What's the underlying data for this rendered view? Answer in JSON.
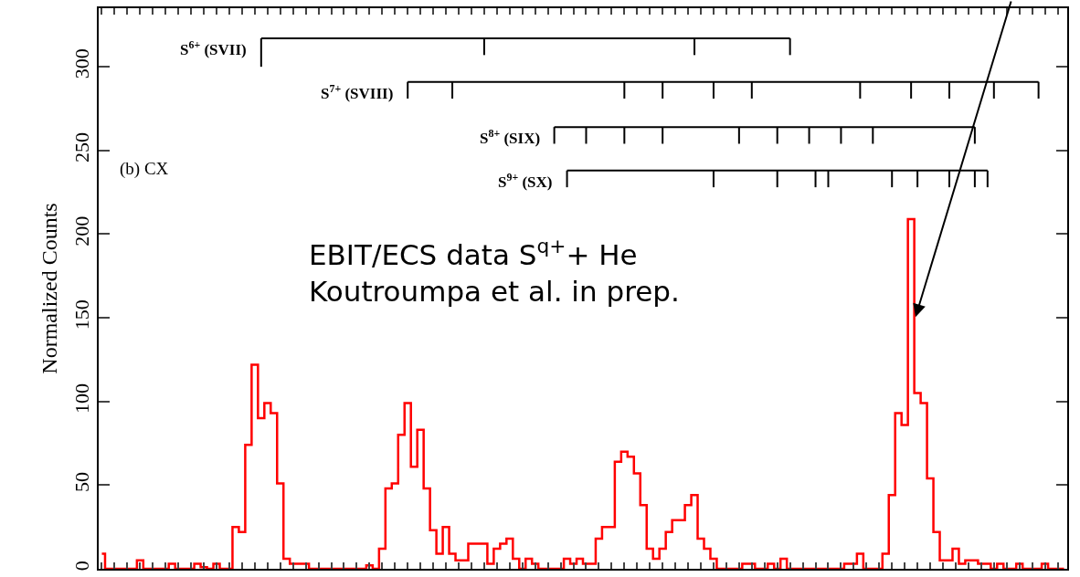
{
  "chart_data": {
    "type": "step",
    "ylabel": "Normalized Counts",
    "categories": [
      null,
      null,
      null,
      null,
      null,
      null,
      null,
      null,
      null,
      null,
      null,
      null,
      null,
      null,
      null,
      null,
      null,
      null,
      null,
      null,
      null,
      null,
      null,
      null,
      null,
      null,
      null,
      null,
      null,
      null,
      null,
      null,
      null,
      null,
      null,
      null,
      null,
      null,
      null,
      null,
      null,
      null,
      null,
      null,
      null,
      null,
      null,
      null,
      null,
      null,
      null,
      null,
      null,
      null,
      null,
      null,
      null,
      null,
      null,
      null,
      null,
      null,
      null,
      null,
      null,
      null,
      null,
      null,
      null,
      null,
      null,
      null,
      null,
      null,
      null,
      null,
      null,
      null,
      null,
      null,
      null,
      null,
      null,
      null,
      null,
      null,
      null,
      null,
      null,
      null,
      null,
      null,
      null,
      null,
      null,
      null,
      null,
      null,
      null,
      null,
      null,
      null,
      null,
      null,
      null,
      null,
      null,
      null,
      null,
      null,
      null,
      null,
      null,
      null,
      null,
      null,
      null,
      null,
      null,
      null,
      null,
      null,
      null,
      null,
      null,
      null,
      null,
      null,
      null,
      null,
      null,
      null,
      null,
      null,
      null,
      null,
      null,
      null,
      null,
      null,
      null,
      null,
      null,
      null,
      null,
      null,
      null,
      null,
      null,
      null,
      null,
      null
    ],
    "series": [
      {
        "type": "step",
        "color": "#ff0000",
        "values": [
          9,
          0,
          0,
          0,
          0,
          0,
          5,
          0,
          0,
          0,
          0,
          3,
          0,
          0,
          0,
          3,
          1,
          0,
          3,
          0,
          0,
          25,
          22,
          74,
          122,
          90,
          99,
          93,
          51,
          6,
          3,
          3,
          3,
          0,
          0,
          0,
          0,
          0,
          0,
          0,
          0,
          0,
          2,
          0,
          12,
          48,
          51,
          80,
          99,
          61,
          83,
          48,
          23,
          9,
          25,
          9,
          5,
          5,
          15,
          15,
          15,
          3,
          12,
          15,
          18,
          6,
          0,
          6,
          3,
          0,
          0,
          0,
          0,
          6,
          3,
          6,
          3,
          3,
          18,
          25,
          25,
          64,
          70,
          67,
          57,
          38,
          12,
          6,
          12,
          22,
          29,
          29,
          38,
          44,
          18,
          12,
          6,
          0,
          0,
          0,
          0,
          3,
          3,
          0,
          0,
          3,
          0,
          6,
          0,
          0,
          0,
          0,
          0,
          0,
          0,
          0,
          0,
          3,
          3,
          9,
          0,
          0,
          0,
          9,
          44,
          93,
          86,
          209,
          105,
          99,
          54,
          22,
          5,
          5,
          12,
          3,
          5,
          5,
          3,
          3,
          0,
          3,
          0,
          0,
          3,
          0,
          0,
          0,
          3,
          0,
          0,
          0
        ]
      },
      {
        "type": "line",
        "name": "S$^{6+}$ (SVII)",
        "color": "#000000",
        "values": [
          null,
          null,
          null,
          null,
          null,
          null,
          null,
          null,
          null,
          null,
          null,
          null,
          null,
          null,
          null,
          null,
          null,
          null,
          null,
          null,
          null,
          null,
          null,
          null,
          null,
          317,
          null,
          null,
          null,
          null,
          null,
          null,
          null,
          null,
          null,
          null,
          null,
          null,
          null,
          null,
          null,
          null,
          null,
          null,
          null,
          null,
          null,
          null,
          null,
          null,
          null,
          null,
          null,
          null,
          null,
          null,
          null,
          null,
          null,
          null,
          317,
          null,
          null,
          null,
          null,
          null,
          null,
          null,
          null,
          null,
          null,
          null,
          null,
          null,
          null,
          null,
          null,
          null,
          null,
          null,
          null,
          null,
          null,
          null,
          null,
          null,
          null,
          null,
          null,
          null,
          null,
          null,
          null,
          317,
          null,
          null,
          null,
          null,
          null,
          null,
          null,
          null,
          null,
          null,
          null,
          null,
          null,
          null,
          317,
          null,
          null,
          null,
          null,
          null,
          null,
          null,
          null,
          null,
          null,
          null,
          null,
          null,
          null,
          null,
          null,
          null,
          null,
          null,
          null,
          null,
          null,
          null,
          null,
          null,
          null,
          null,
          null,
          null,
          null,
          null,
          null,
          null,
          null,
          null,
          null,
          null,
          null,
          null,
          null,
          null,
          null,
          null
        ],
        "errors": [
          null,
          null,
          null,
          null,
          null,
          null,
          null,
          null,
          null,
          null,
          null,
          null,
          null,
          null,
          null,
          null,
          null,
          null,
          null,
          null,
          null,
          null,
          null,
          null,
          null,
          [
            300,
            317
          ],
          null,
          null,
          null,
          null,
          null,
          null,
          null,
          null,
          null,
          null,
          null,
          null,
          null,
          null,
          null,
          null,
          null,
          null,
          null,
          null,
          null,
          null,
          null,
          null,
          null,
          null,
          null,
          null,
          null,
          null,
          null,
          null,
          null,
          null,
          [
            307,
            317
          ],
          null,
          null,
          null,
          null,
          null,
          null,
          null,
          null,
          null,
          null,
          null,
          null,
          null,
          null,
          null,
          null,
          null,
          null,
          null,
          null,
          null,
          null,
          null,
          null,
          null,
          null,
          null,
          null,
          null,
          null,
          null,
          null,
          [
            307,
            317
          ],
          null,
          null,
          null,
          null,
          null,
          null,
          null,
          null,
          null,
          null,
          null,
          null,
          null,
          null,
          [
            307,
            317
          ],
          null,
          null,
          null,
          null,
          null,
          null,
          null,
          null,
          null,
          null,
          null,
          null,
          null,
          null,
          null,
          null,
          null,
          null,
          null,
          null,
          null,
          null,
          null,
          null,
          null,
          null,
          null,
          null,
          null,
          null,
          null,
          null,
          null,
          null,
          null,
          null,
          null,
          null,
          null,
          null,
          null,
          null,
          null
        ]
      },
      {
        "type": "line",
        "name": "S$^{7+}$ (SVIII)",
        "color": "#000000",
        "values": [
          null,
          null,
          null,
          null,
          null,
          null,
          null,
          null,
          null,
          null,
          null,
          null,
          null,
          null,
          null,
          null,
          null,
          null,
          null,
          null,
          null,
          null,
          null,
          null,
          null,
          null,
          null,
          null,
          null,
          null,
          null,
          null,
          null,
          null,
          null,
          null,
          null,
          null,
          null,
          null,
          null,
          null,
          null,
          null,
          null,
          null,
          null,
          null,
          291,
          null,
          null,
          null,
          null,
          null,
          null,
          291,
          null,
          null,
          null,
          null,
          null,
          null,
          null,
          null,
          null,
          null,
          null,
          null,
          null,
          null,
          null,
          null,
          null,
          null,
          null,
          null,
          null,
          null,
          null,
          null,
          null,
          null,
          291,
          null,
          null,
          null,
          null,
          null,
          291,
          null,
          null,
          null,
          null,
          null,
          null,
          null,
          291,
          null,
          null,
          null,
          null,
          null,
          291,
          null,
          null,
          null,
          null,
          null,
          null,
          null,
          null,
          null,
          null,
          null,
          null,
          null,
          null,
          null,
          null,
          291,
          null,
          null,
          null,
          null,
          null,
          null,
          null,
          291,
          null,
          null,
          null,
          null,
          null,
          291,
          null,
          null,
          null,
          null,
          null,
          null,
          291,
          null,
          null,
          null,
          null,
          null,
          null,
          291,
          null,
          null,
          null,
          null
        ],
        "errors": [
          null,
          null,
          null,
          null,
          null,
          null,
          null,
          null,
          null,
          null,
          null,
          null,
          null,
          null,
          null,
          null,
          null,
          null,
          null,
          null,
          null,
          null,
          null,
          null,
          null,
          null,
          null,
          null,
          null,
          null,
          null,
          null,
          null,
          null,
          null,
          null,
          null,
          null,
          null,
          null,
          null,
          null,
          null,
          null,
          null,
          null,
          null,
          null,
          [
            281,
            291
          ],
          null,
          null,
          null,
          null,
          null,
          null,
          [
            281,
            291
          ],
          null,
          null,
          null,
          null,
          null,
          null,
          null,
          null,
          null,
          null,
          null,
          null,
          null,
          null,
          null,
          null,
          null,
          null,
          null,
          null,
          null,
          null,
          null,
          null,
          null,
          null,
          [
            281,
            291
          ],
          null,
          null,
          null,
          null,
          null,
          [
            281,
            291
          ],
          null,
          null,
          null,
          null,
          null,
          null,
          null,
          [
            281,
            291
          ],
          null,
          null,
          null,
          null,
          null,
          [
            281,
            291
          ],
          null,
          null,
          null,
          null,
          null,
          null,
          null,
          null,
          null,
          null,
          null,
          null,
          null,
          null,
          null,
          null,
          [
            281,
            291
          ],
          null,
          null,
          null,
          null,
          null,
          null,
          null,
          [
            281,
            291
          ],
          null,
          null,
          null,
          null,
          null,
          [
            281,
            291
          ],
          null,
          null,
          null,
          null,
          null,
          null,
          [
            281,
            291
          ],
          null,
          null,
          null,
          null,
          null,
          null,
          [
            281,
            291
          ],
          null,
          null,
          null,
          null
        ]
      },
      {
        "type": "line",
        "name": "S$^{8+}$ (SIX)",
        "color": "#000000",
        "values": [
          null,
          null,
          null,
          null,
          null,
          null,
          null,
          null,
          null,
          null,
          null,
          null,
          null,
          null,
          null,
          null,
          null,
          null,
          null,
          null,
          null,
          null,
          null,
          null,
          null,
          null,
          null,
          null,
          null,
          null,
          null,
          null,
          null,
          null,
          null,
          null,
          null,
          null,
          null,
          null,
          null,
          null,
          null,
          null,
          null,
          null,
          null,
          null,
          null,
          null,
          null,
          null,
          null,
          null,
          null,
          null,
          null,
          null,
          null,
          null,
          null,
          null,
          null,
          null,
          null,
          null,
          null,
          null,
          null,
          null,
          null,
          264,
          null,
          null,
          null,
          null,
          264,
          null,
          null,
          null,
          null,
          null,
          264,
          null,
          null,
          null,
          null,
          null,
          264,
          null,
          null,
          null,
          null,
          null,
          null,
          null,
          null,
          null,
          null,
          null,
          264,
          null,
          null,
          null,
          null,
          null,
          264,
          null,
          null,
          null,
          null,
          264,
          null,
          null,
          null,
          null,
          264,
          null,
          null,
          null,
          null,
          264,
          null,
          null,
          null,
          null,
          null,
          null,
          null,
          null,
          null,
          null,
          null,
          null,
          null,
          null,
          null,
          264,
          null,
          null,
          null,
          null,
          null,
          null,
          null,
          null,
          null,
          null,
          null,
          null,
          null,
          null
        ],
        "errors": [
          null,
          null,
          null,
          null,
          null,
          null,
          null,
          null,
          null,
          null,
          null,
          null,
          null,
          null,
          null,
          null,
          null,
          null,
          null,
          null,
          null,
          null,
          null,
          null,
          null,
          null,
          null,
          null,
          null,
          null,
          null,
          null,
          null,
          null,
          null,
          null,
          null,
          null,
          null,
          null,
          null,
          null,
          null,
          null,
          null,
          null,
          null,
          null,
          null,
          null,
          null,
          null,
          null,
          null,
          null,
          null,
          null,
          null,
          null,
          null,
          null,
          null,
          null,
          null,
          null,
          null,
          null,
          null,
          null,
          null,
          null,
          [
            254,
            264
          ],
          null,
          null,
          null,
          null,
          [
            254,
            264
          ],
          null,
          null,
          null,
          null,
          null,
          [
            254,
            264
          ],
          null,
          null,
          null,
          null,
          null,
          [
            254,
            264
          ],
          null,
          null,
          null,
          null,
          null,
          null,
          null,
          null,
          null,
          null,
          null,
          [
            254,
            264
          ],
          null,
          null,
          null,
          null,
          null,
          [
            254,
            264
          ],
          null,
          null,
          null,
          null,
          [
            254,
            264
          ],
          null,
          null,
          null,
          null,
          [
            254,
            264
          ],
          null,
          null,
          null,
          null,
          [
            254,
            264
          ],
          null,
          null,
          null,
          null,
          null,
          null,
          null,
          null,
          null,
          null,
          null,
          null,
          null,
          null,
          null,
          [
            254,
            264
          ],
          null,
          null,
          null,
          null,
          null,
          null,
          null,
          null,
          null,
          null,
          null,
          null,
          null,
          null
        ]
      },
      {
        "type": "line",
        "name": "S$^{9+}$ (SX)",
        "color": "#000000",
        "values": [
          null,
          null,
          null,
          null,
          null,
          null,
          null,
          null,
          null,
          null,
          null,
          null,
          null,
          null,
          null,
          null,
          null,
          null,
          null,
          null,
          null,
          null,
          null,
          null,
          null,
          null,
          null,
          null,
          null,
          null,
          null,
          null,
          null,
          null,
          null,
          null,
          null,
          null,
          null,
          null,
          null,
          null,
          null,
          null,
          null,
          null,
          null,
          null,
          null,
          null,
          null,
          null,
          null,
          null,
          null,
          null,
          null,
          null,
          null,
          null,
          null,
          null,
          null,
          null,
          null,
          null,
          null,
          null,
          null,
          null,
          null,
          null,
          null,
          238,
          null,
          null,
          null,
          null,
          null,
          null,
          null,
          null,
          null,
          null,
          null,
          null,
          null,
          null,
          null,
          null,
          null,
          null,
          null,
          null,
          null,
          null,
          238,
          null,
          null,
          null,
          null,
          null,
          null,
          null,
          null,
          null,
          238,
          null,
          null,
          null,
          null,
          null,
          238,
          null,
          238,
          null,
          null,
          null,
          null,
          null,
          null,
          null,
          null,
          null,
          238,
          null,
          null,
          null,
          238,
          null,
          null,
          null,
          null,
          238,
          null,
          null,
          null,
          238,
          null,
          238,
          null,
          null,
          null,
          null,
          null,
          null,
          null,
          null,
          null,
          null,
          null,
          null
        ],
        "errors": [
          null,
          null,
          null,
          null,
          null,
          null,
          null,
          null,
          null,
          null,
          null,
          null,
          null,
          null,
          null,
          null,
          null,
          null,
          null,
          null,
          null,
          null,
          null,
          null,
          null,
          null,
          null,
          null,
          null,
          null,
          null,
          null,
          null,
          null,
          null,
          null,
          null,
          null,
          null,
          null,
          null,
          null,
          null,
          null,
          null,
          null,
          null,
          null,
          null,
          null,
          null,
          null,
          null,
          null,
          null,
          null,
          null,
          null,
          null,
          null,
          null,
          null,
          null,
          null,
          null,
          null,
          null,
          null,
          null,
          null,
          null,
          null,
          null,
          [
            228,
            238
          ],
          null,
          null,
          null,
          null,
          null,
          null,
          null,
          null,
          null,
          null,
          null,
          null,
          null,
          null,
          null,
          null,
          null,
          null,
          null,
          null,
          null,
          null,
          [
            228,
            238
          ],
          null,
          null,
          null,
          null,
          null,
          null,
          null,
          null,
          null,
          [
            228,
            238
          ],
          null,
          null,
          null,
          null,
          null,
          [
            228,
            238
          ],
          null,
          [
            228,
            238
          ],
          null,
          null,
          null,
          null,
          null,
          null,
          null,
          null,
          null,
          [
            228,
            238
          ],
          null,
          null,
          null,
          [
            228,
            238
          ],
          null,
          null,
          null,
          null,
          [
            228,
            238
          ],
          null,
          null,
          null,
          [
            228,
            238
          ],
          null,
          [
            228,
            238
          ],
          null,
          null,
          null,
          null,
          null,
          null,
          null,
          null,
          null,
          null,
          null,
          null
        ]
      }
    ],
    "annotations": [
      "(b) CX",
      "EBIT/ECS data S$^{q+}$+ He\nKoutroumpa et al. in prep."
    ],
    "ylim": [
      0,
      335
    ],
    "yticks": [
      0,
      50,
      100,
      150,
      200,
      250,
      300
    ],
    "tick_labels": "y",
    "legend": "top left",
    "marker": "none",
    "line_style": "solid"
  }
}
